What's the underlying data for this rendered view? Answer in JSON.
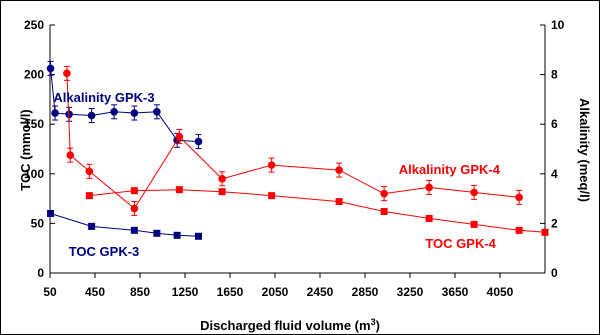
{
  "chart_data": {
    "type": "line",
    "xlabel_main": "Discharged fluid volume (m",
    "xlabel_sup": "3",
    "xlabel_tail": ")",
    "ylabel_left": "TOC (mmol/l)",
    "ylabel_right": "Alkalinity (meq/l)",
    "xlim": [
      50,
      4450
    ],
    "ylim_left": [
      0,
      250
    ],
    "ylim_right": [
      0,
      10
    ],
    "x_ticks": [
      50,
      450,
      850,
      1250,
      1650,
      2050,
      2450,
      2850,
      3250,
      3650,
      4050
    ],
    "x_tick_labels": [
      "50",
      "450",
      "850",
      "1250",
      "1650",
      "2050",
      "2450",
      "2850",
      "3250",
      "3650",
      "4050"
    ],
    "y_left_ticks": [
      0,
      50,
      100,
      150,
      200,
      250
    ],
    "y_left_tick_labels": [
      "0",
      "50",
      "100",
      "150",
      "200",
      "250"
    ],
    "y_right_ticks": [
      0,
      2,
      4,
      6,
      8,
      10
    ],
    "y_right_tick_labels": [
      "0",
      "2",
      "4",
      "6",
      "8",
      "10"
    ],
    "grid": false,
    "series": [
      {
        "name": "Alkalinity GPK-3",
        "axis": "right",
        "marker": "circle",
        "color": "#000080",
        "error_bars": true,
        "label_anchor": [
          530,
          6.9
        ],
        "x": [
          55,
          95,
          220,
          420,
          620,
          800,
          1000,
          1180,
          1370
        ],
        "y": [
          8.25,
          6.45,
          6.4,
          6.35,
          6.5,
          6.45,
          6.5,
          5.35,
          5.3
        ]
      },
      {
        "name": "TOC GPK-3",
        "axis": "left",
        "marker": "square",
        "color": "#000080",
        "error_bars": false,
        "label_anchor": [
          530,
          17
        ],
        "x": [
          55,
          420,
          800,
          1000,
          1180,
          1370
        ],
        "y": [
          60,
          47,
          43,
          40,
          38,
          37
        ]
      },
      {
        "name": "Alkalinity GPK-4",
        "axis": "right",
        "marker": "circle",
        "color": "#ff0000",
        "error_bars": true,
        "label_anchor": [
          3600,
          4.0
        ],
        "x": [
          200,
          230,
          400,
          800,
          1200,
          1580,
          2020,
          2620,
          3020,
          3420,
          3820,
          4220
        ],
        "y": [
          8.05,
          4.75,
          4.1,
          2.6,
          5.5,
          3.8,
          4.35,
          4.15,
          3.2,
          3.45,
          3.25,
          3.05
        ]
      },
      {
        "name": "TOC GPK-4",
        "axis": "left",
        "marker": "square",
        "color": "#ff0000",
        "error_bars": false,
        "label_anchor": [
          3700,
          25
        ],
        "x": [
          400,
          800,
          1200,
          1580,
          2020,
          2620,
          3020,
          3420,
          3820,
          4220,
          4450
        ],
        "y": [
          78,
          83,
          84,
          82,
          78,
          72,
          62,
          55,
          49,
          43,
          41
        ]
      }
    ]
  }
}
